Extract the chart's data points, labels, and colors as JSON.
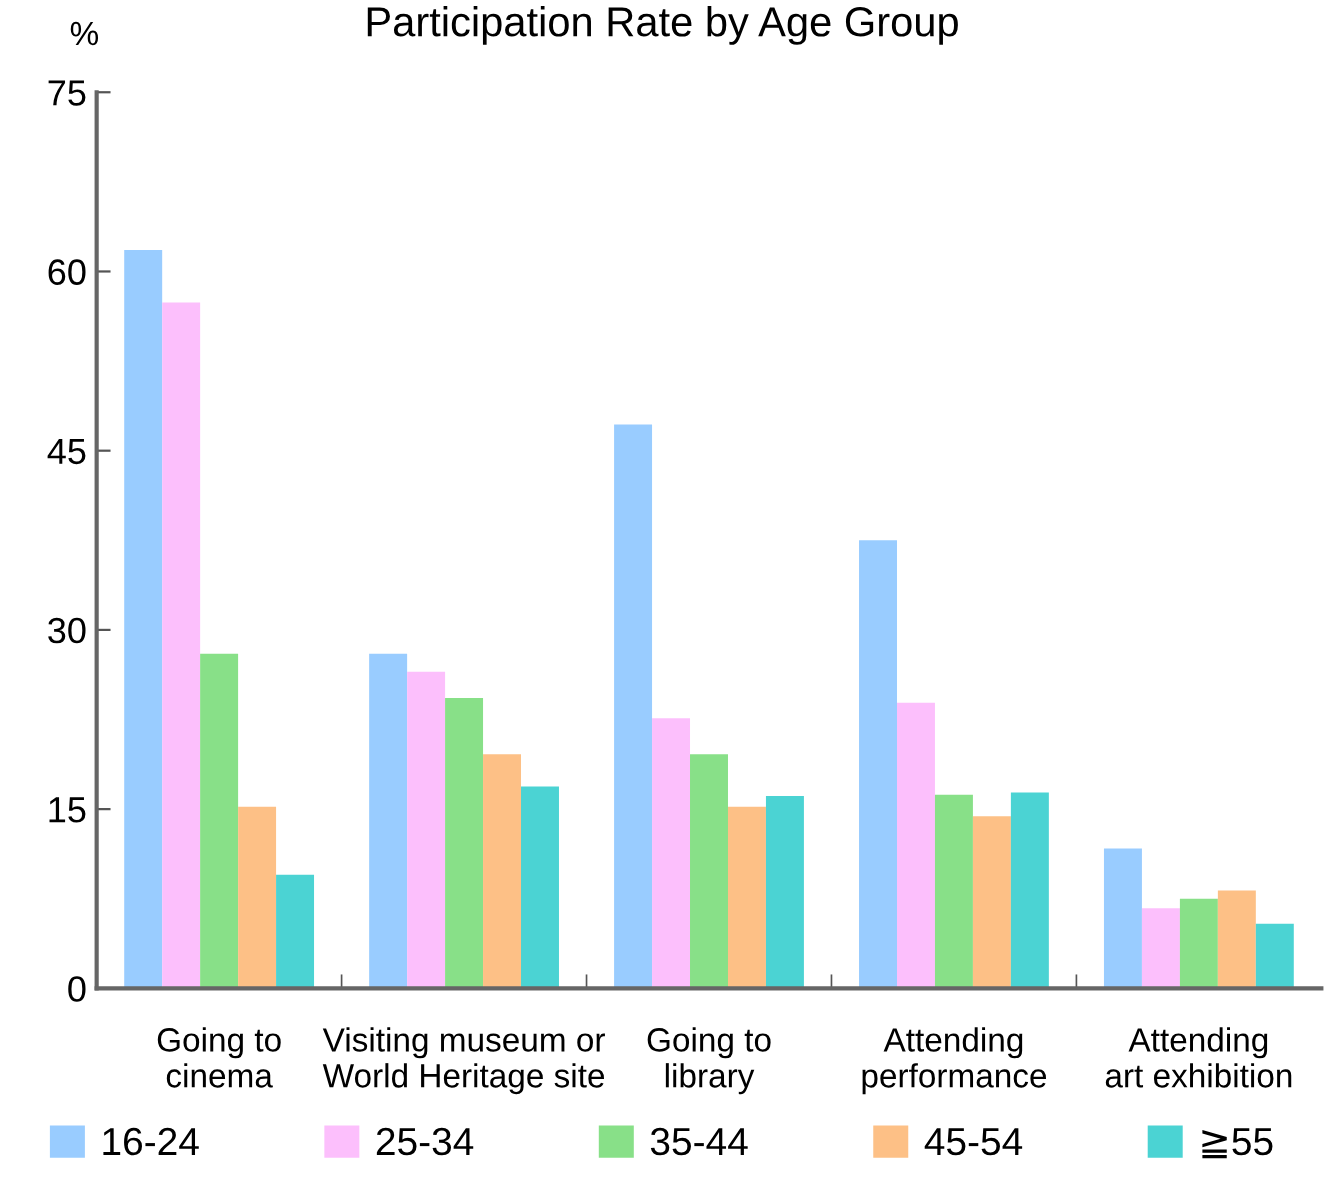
{
  "chart_data": {
    "type": "bar",
    "title": "Participation Rate by Age Group",
    "ylabel": "%",
    "categories": [
      "Going to\ncinema",
      "Visiting museum or\nWorld Heritage site",
      "Going to\nlibrary",
      "Attending\nperformance",
      "Attending\nart exhibition"
    ],
    "series": [
      {
        "name": "16-24",
        "color": "#99ccff",
        "values": [
          61.8,
          28.0,
          47.2,
          37.5,
          11.7
        ]
      },
      {
        "name": "25-34",
        "color": "#fcbffc",
        "values": [
          57.4,
          26.5,
          22.6,
          23.9,
          6.7
        ]
      },
      {
        "name": "35-44",
        "color": "#88e088",
        "values": [
          28.0,
          24.3,
          19.6,
          16.2,
          7.5
        ]
      },
      {
        "name": "45-54",
        "color": "#fdc086",
        "values": [
          15.2,
          19.6,
          15.2,
          14.4,
          8.2
        ]
      },
      {
        "name": "≧55",
        "color": "#4bd3d3",
        "values": [
          9.5,
          16.9,
          16.1,
          16.4,
          5.4
        ]
      }
    ],
    "ylim": [
      0,
      75
    ],
    "yticks": [
      0,
      15,
      30,
      45,
      60,
      75
    ],
    "grid": false,
    "legend": "bottom"
  }
}
